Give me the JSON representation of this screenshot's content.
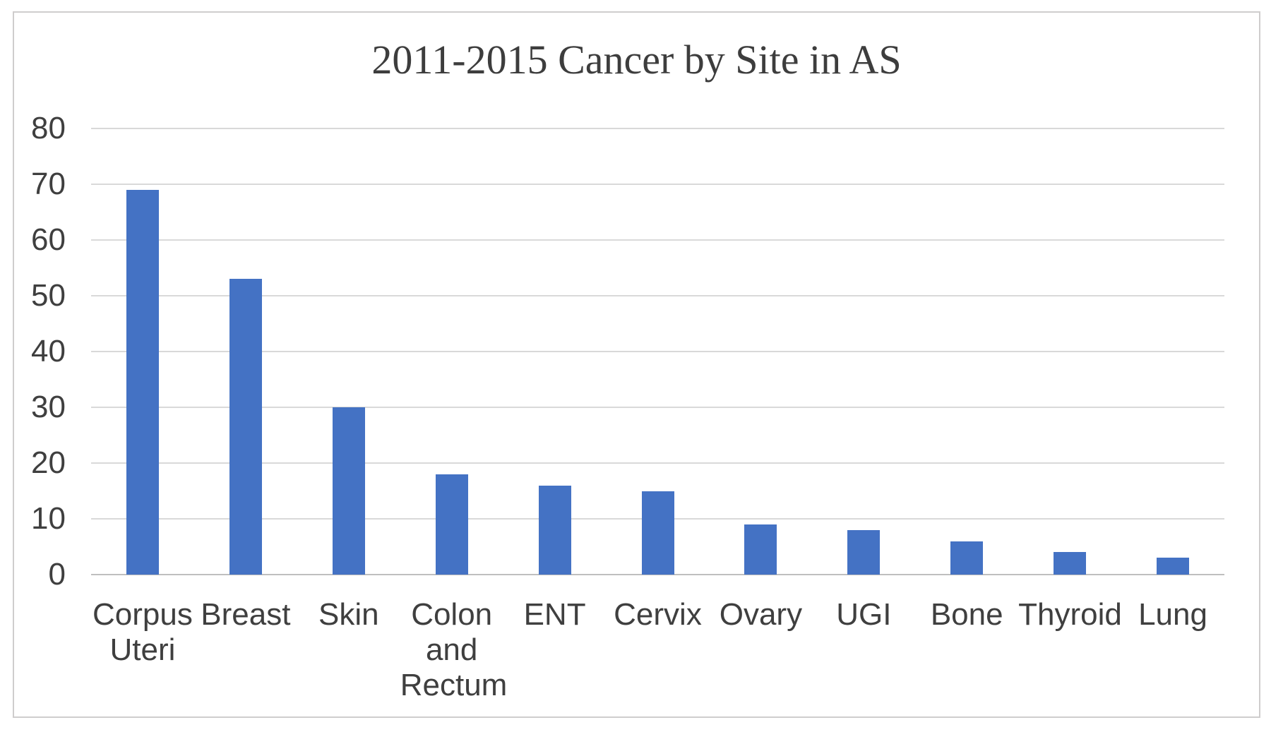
{
  "chart_data": {
    "type": "bar",
    "title": "2011-2015 Cancer by Site in AS",
    "categories": [
      "Corpus Uteri",
      "Breast",
      "Skin",
      "Colon and Rectum",
      "ENT",
      "Cervix",
      "Ovary",
      "UGI",
      "Bone",
      "Thyroid",
      "Lung"
    ],
    "category_lines": [
      [
        "Corpus",
        "Uteri"
      ],
      [
        "Breast"
      ],
      [
        "Skin"
      ],
      [
        "Colon",
        "and",
        "Rectum"
      ],
      [
        "ENT"
      ],
      [
        "Cervix"
      ],
      [
        "Ovary"
      ],
      [
        "UGI"
      ],
      [
        "Bone"
      ],
      [
        "Thyroid"
      ],
      [
        "Lung"
      ]
    ],
    "values": [
      69,
      53,
      30,
      18,
      16,
      15,
      9,
      8,
      6,
      4,
      3
    ],
    "xlabel": "",
    "ylabel": "",
    "ylim": [
      0,
      80
    ],
    "ytick_step": 10,
    "ytick_labels": [
      "80",
      "70",
      "60",
      "50",
      "40",
      "30",
      "20",
      "10",
      "0"
    ],
    "grid": true,
    "legend": false,
    "colors": {
      "bar": "#4472C4",
      "gridline": "#D9D9D9",
      "axis_line": "#BFBFBF",
      "label_text": "#3F3F3F",
      "title_text": "#3D3D3D",
      "frame_border": "#CFCDCD",
      "background": "#FFFFFF"
    }
  }
}
